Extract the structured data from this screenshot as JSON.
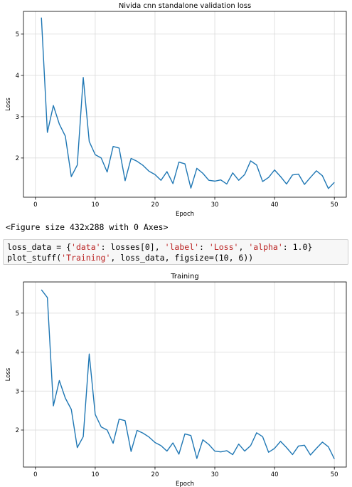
{
  "output": {
    "figure_text": "<Figure size 432x288 with 0 Axes>"
  },
  "code": {
    "line1_parts": [
      {
        "t": "loss_data = {",
        "c": "kw"
      },
      {
        "t": "'data'",
        "c": "str"
      },
      {
        "t": ": losses[0], ",
        "c": "kw"
      },
      {
        "t": "'label'",
        "c": "str"
      },
      {
        "t": ": ",
        "c": "kw"
      },
      {
        "t": "'Loss'",
        "c": "str"
      },
      {
        "t": ", ",
        "c": "kw"
      },
      {
        "t": "'alpha'",
        "c": "str"
      },
      {
        "t": ": 1.0}",
        "c": "kw"
      }
    ],
    "line2_parts": [
      {
        "t": "plot_stuff(",
        "c": "kw"
      },
      {
        "t": "'Training'",
        "c": "str"
      },
      {
        "t": ", loss_data, figsize=(10, 6))",
        "c": "kw"
      }
    ]
  },
  "colors": {
    "line": "#1f77b4",
    "grid": "#d9d9d9",
    "axes": "#000000"
  },
  "chart_data": [
    {
      "type": "line",
      "title": "Nivida cnn standalone validation loss",
      "xlabel": "Epoch",
      "ylabel": "Loss",
      "xlim": [
        -2,
        52
      ],
      "ylim": [
        1.05,
        5.55
      ],
      "xticks": [
        0,
        10,
        20,
        30,
        40,
        50
      ],
      "yticks": [
        2,
        3,
        4,
        5
      ],
      "grid": true,
      "series": [
        {
          "x": [
            1,
            2,
            3,
            4,
            5,
            6,
            7,
            8,
            9,
            10,
            11,
            12,
            13,
            14,
            15,
            16,
            17,
            18,
            19,
            20,
            21,
            22,
            23,
            24,
            25,
            26,
            27,
            28,
            29,
            30,
            31,
            32,
            33,
            34,
            35,
            36,
            37,
            38,
            39,
            40,
            41,
            42,
            43,
            44,
            45,
            46,
            47,
            48,
            49,
            50
          ],
          "values": [
            5.4,
            2.62,
            3.27,
            2.82,
            2.53,
            1.55,
            1.83,
            3.95,
            2.4,
            2.08,
            2.0,
            1.66,
            2.28,
            2.24,
            1.45,
            1.99,
            1.92,
            1.82,
            1.68,
            1.6,
            1.46,
            1.67,
            1.38,
            1.9,
            1.86,
            1.27,
            1.75,
            1.63,
            1.46,
            1.44,
            1.47,
            1.37,
            1.64,
            1.46,
            1.6,
            1.93,
            1.83,
            1.43,
            1.53,
            1.71,
            1.55,
            1.37,
            1.59,
            1.61,
            1.36,
            1.53,
            1.69,
            1.57,
            1.26,
            1.41
          ]
        }
      ]
    },
    {
      "type": "line",
      "title": "Training",
      "xlabel": "Epoch",
      "ylabel": "Loss",
      "xlim": [
        -2,
        52
      ],
      "ylim": [
        1.05,
        5.8
      ],
      "xticks": [
        0,
        10,
        20,
        30,
        40,
        50
      ],
      "yticks": [
        2,
        3,
        4,
        5
      ],
      "grid": true,
      "series": [
        {
          "x": [
            1,
            2,
            3,
            4,
            5,
            6,
            7,
            8,
            9,
            10,
            11,
            12,
            13,
            14,
            15,
            16,
            17,
            18,
            19,
            20,
            21,
            22,
            23,
            24,
            25,
            26,
            27,
            28,
            29,
            30,
            31,
            32,
            33,
            34,
            35,
            36,
            37,
            38,
            39,
            40,
            41,
            42,
            43,
            44,
            45,
            46,
            47,
            48,
            49,
            50
          ],
          "values": [
            5.6,
            5.4,
            2.62,
            3.27,
            2.82,
            2.53,
            1.55,
            1.83,
            3.95,
            2.4,
            2.08,
            2.0,
            1.66,
            2.28,
            2.24,
            1.45,
            1.99,
            1.92,
            1.82,
            1.68,
            1.6,
            1.46,
            1.67,
            1.38,
            1.9,
            1.86,
            1.27,
            1.75,
            1.63,
            1.46,
            1.44,
            1.47,
            1.37,
            1.64,
            1.46,
            1.6,
            1.93,
            1.83,
            1.43,
            1.53,
            1.71,
            1.55,
            1.37,
            1.59,
            1.61,
            1.36,
            1.53,
            1.69,
            1.57,
            1.26
          ]
        }
      ]
    }
  ]
}
